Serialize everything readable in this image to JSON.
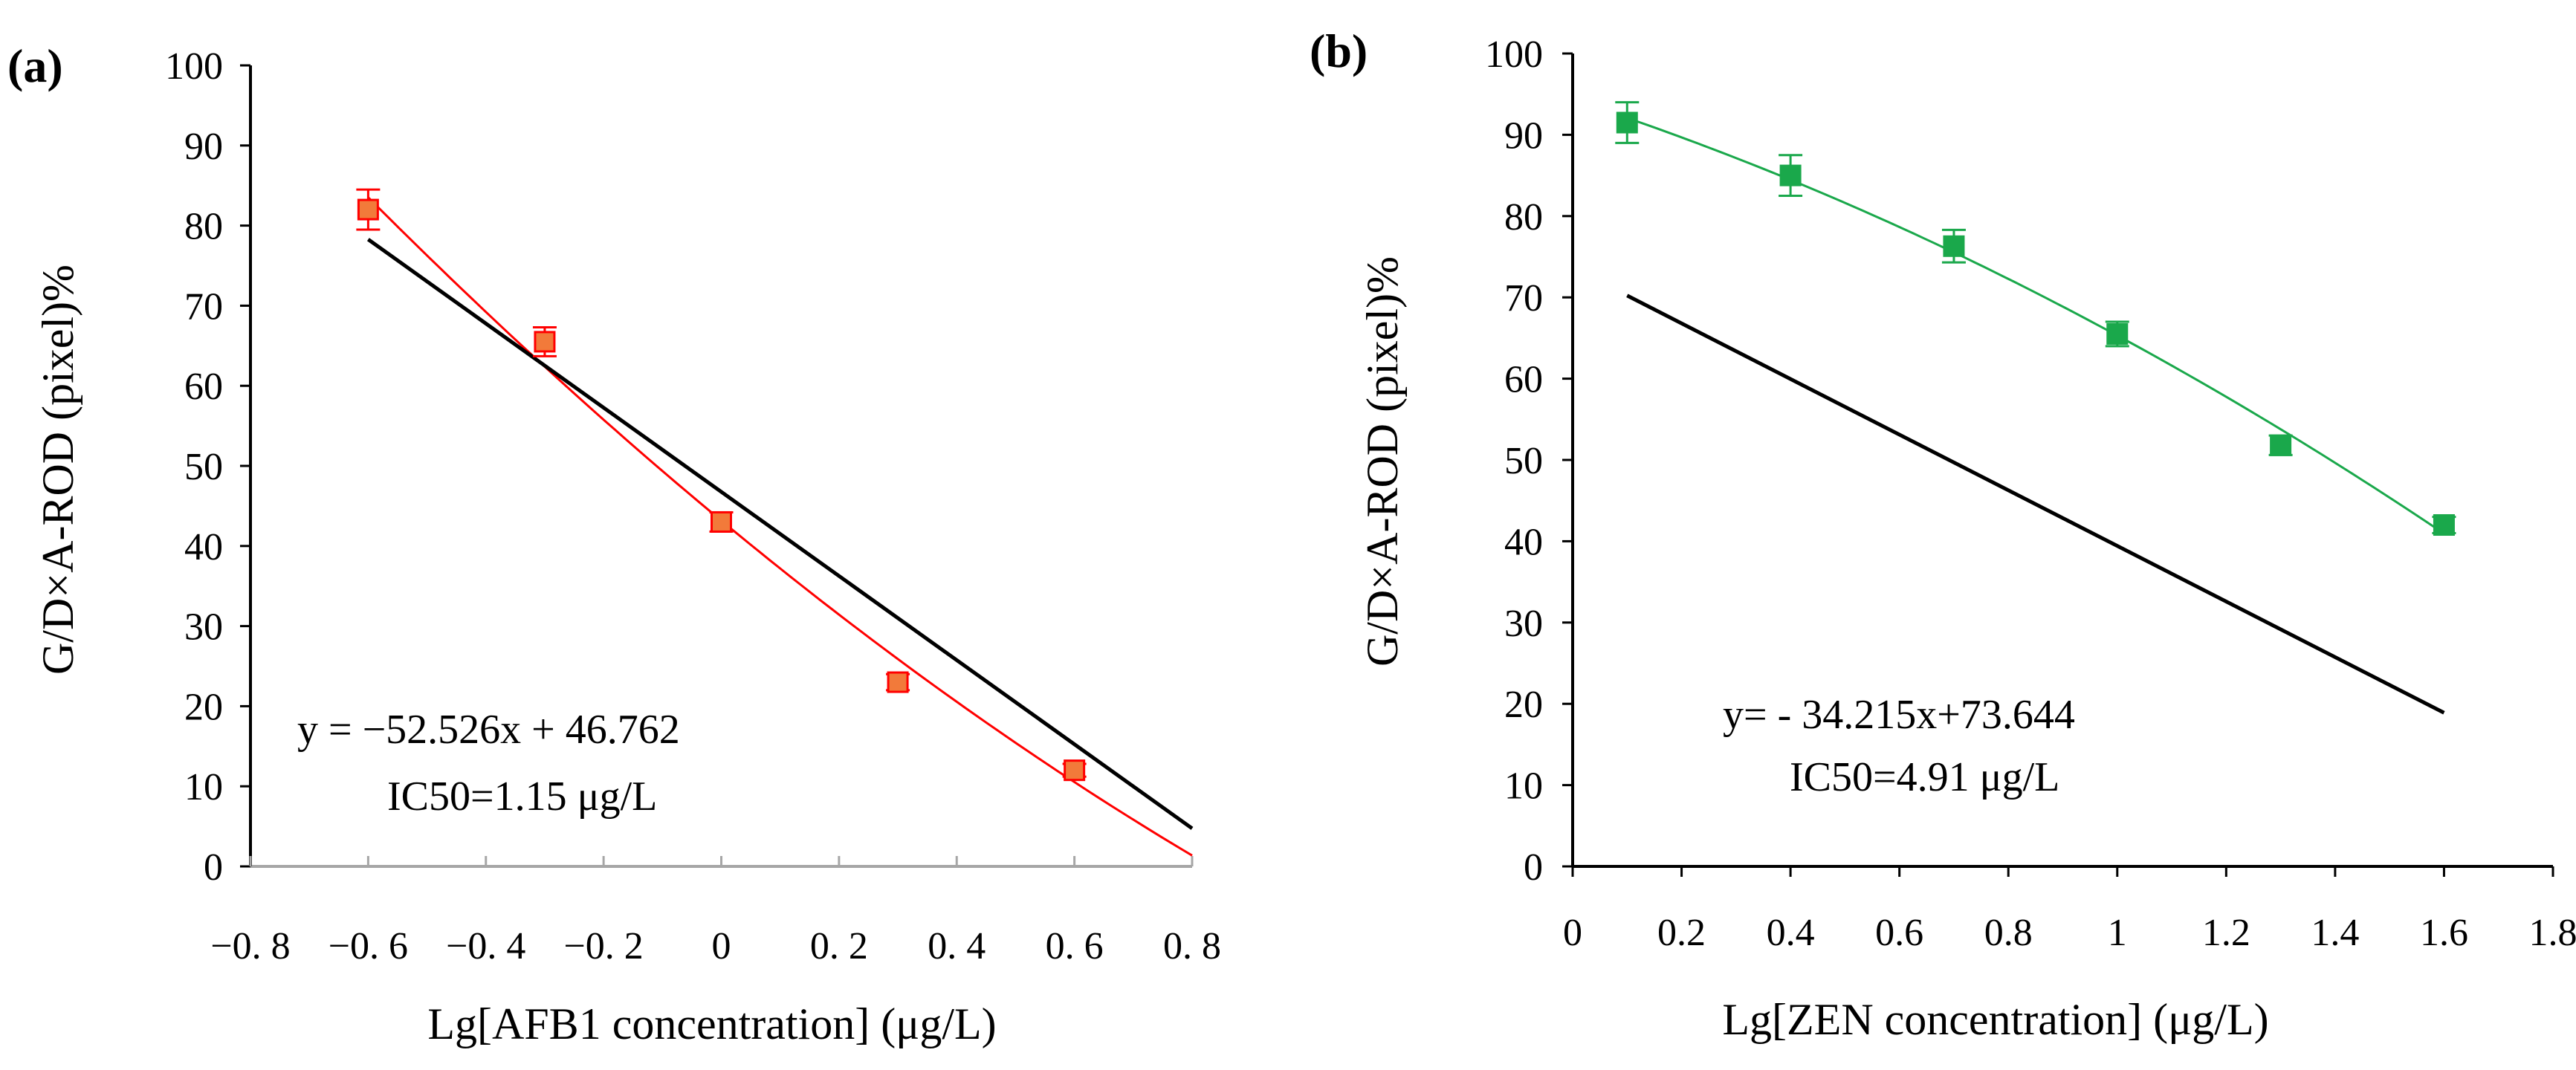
{
  "chart_data": [
    {
      "type": "scatter",
      "panel_label": "(a)",
      "xlabel": "Lg[AFB1 concentration] (μg/L)",
      "ylabel": "G/D×A-ROD (pixel)%",
      "xlim": [
        -0.8,
        0.8
      ],
      "ylim": [
        0,
        100
      ],
      "x_ticks": [
        -0.8,
        -0.6,
        -0.4,
        -0.2,
        0,
        0.2,
        0.4,
        0.6,
        0.8
      ],
      "x_tick_labels": [
        "−0. 8",
        "−0. 6",
        "−0. 4",
        "−0. 2",
        "0",
        "0. 2",
        "0. 4",
        "0. 6",
        "0. 8"
      ],
      "y_ticks": [
        0,
        10,
        20,
        30,
        40,
        50,
        60,
        70,
        80,
        90,
        100
      ],
      "y_tick_labels": [
        "0",
        "10",
        "20",
        "30",
        "40",
        "50",
        "60",
        "70",
        "80",
        "90",
        "100"
      ],
      "grid": false,
      "series": [
        {
          "x": [
            -0.6,
            -0.3,
            0,
            0.3,
            0.6
          ],
          "y": [
            82,
            65.5,
            43,
            23,
            12
          ],
          "error": [
            2.5,
            1.8,
            1.2,
            1,
            0.8
          ],
          "color": "#ff0000",
          "marker_fill": "#f27a3a",
          "marker": "square"
        }
      ],
      "fit_line": {
        "slope": -52.526,
        "intercept": 46.762,
        "x_range": [
          -0.6,
          0.8
        ],
        "color": "#000000"
      },
      "smooth_curve": {
        "x_range": [
          -0.6,
          0.8
        ],
        "color": "#ff0000"
      },
      "annotations": [
        "y = −52.526x + 46.762",
        "IC50=1.15 μg/L"
      ]
    },
    {
      "type": "scatter",
      "panel_label": "(b)",
      "xlabel": "Lg[ZEN concentration] (μg/L)",
      "ylabel": "G/D×A-ROD (pixel)%",
      "xlim": [
        0,
        1.8
      ],
      "ylim": [
        0,
        100
      ],
      "x_ticks": [
        0,
        0.2,
        0.4,
        0.6,
        0.8,
        1,
        1.2,
        1.4,
        1.6,
        1.8
      ],
      "x_tick_labels": [
        "0",
        "0.2",
        "0.4",
        "0.6",
        "0.8",
        "1",
        "1.2",
        "1.4",
        "1.6",
        "1.8"
      ],
      "y_ticks": [
        0,
        10,
        20,
        30,
        40,
        50,
        60,
        70,
        80,
        90,
        100
      ],
      "y_tick_labels": [
        "0",
        "10",
        "20",
        "30",
        "40",
        "50",
        "60",
        "70",
        "80",
        "90",
        "100"
      ],
      "grid": false,
      "series": [
        {
          "x": [
            0.1,
            0.4,
            0.7,
            1,
            1.3,
            1.6
          ],
          "y": [
            91.5,
            85,
            76.3,
            65.5,
            51.8,
            42
          ],
          "error": [
            2.5,
            2.5,
            2,
            1.5,
            1.2,
            1
          ],
          "color": "#1aa84b",
          "marker_fill": "#1aa84b",
          "marker": "square"
        }
      ],
      "fit_line": {
        "slope": -34.215,
        "intercept": 73.644,
        "x_range": [
          0.1,
          1.6
        ],
        "color": "#000000"
      },
      "smooth_curve": {
        "x_range": [
          0.1,
          1.6
        ],
        "color": "#1aa84b"
      },
      "annotations": [
        "y= - 34.215x+73.644",
        "IC50=4.91 μg/L"
      ]
    }
  ]
}
